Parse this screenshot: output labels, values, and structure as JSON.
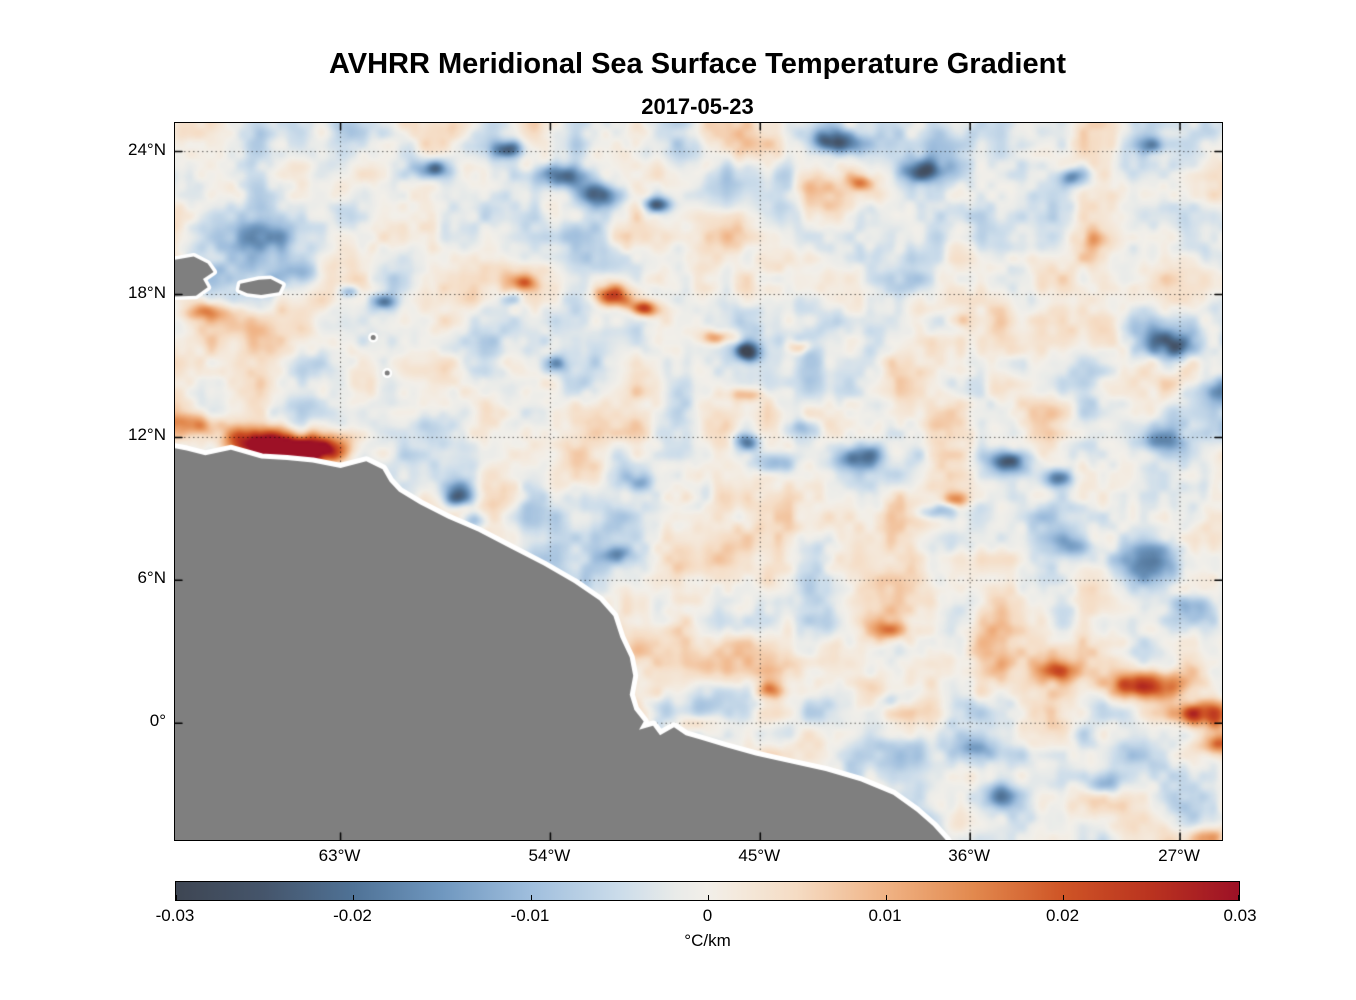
{
  "figure": {
    "title": "AVHRR Meridional Sea Surface Temperature Gradient",
    "subtitle": "2017-05-23"
  },
  "axes": {
    "lat_ticks": [
      {
        "label": "24°N",
        "value": 24
      },
      {
        "label": "18°N",
        "value": 18
      },
      {
        "label": "12°N",
        "value": 12
      },
      {
        "label": "6°N",
        "value": 6
      },
      {
        "label": "0°",
        "value": 0
      }
    ],
    "lon_ticks": [
      {
        "label": "63°W",
        "value": -63
      },
      {
        "label": "54°W",
        "value": -54
      },
      {
        "label": "45°W",
        "value": -45
      },
      {
        "label": "36°W",
        "value": -36
      },
      {
        "label": "27°W",
        "value": -27
      }
    ],
    "lon_range": [
      -70.1,
      -25.2
    ],
    "lat_range": [
      -4.9,
      25.2
    ],
    "grid": "dotted"
  },
  "colorbar": {
    "ticks": [
      "-0.03",
      "-0.02",
      "-0.01",
      "0",
      "0.01",
      "0.02",
      "0.03"
    ],
    "tick_values": [
      -0.03,
      -0.02,
      -0.01,
      0,
      0.01,
      0.02,
      0.03
    ],
    "min": -0.03,
    "max": 0.03,
    "label": "°C/km",
    "stops": [
      {
        "t": 0.0,
        "color": "#3e4653"
      },
      {
        "t": 0.083,
        "color": "#45556b"
      },
      {
        "t": 0.167,
        "color": "#4f7296"
      },
      {
        "t": 0.25,
        "color": "#6f97bf"
      },
      {
        "t": 0.333,
        "color": "#9fbedd"
      },
      {
        "t": 0.417,
        "color": "#cbdcea"
      },
      {
        "t": 0.47,
        "color": "#e9ebe9"
      },
      {
        "t": 0.5,
        "color": "#f2efe9"
      },
      {
        "t": 0.53,
        "color": "#f4e9dc"
      },
      {
        "t": 0.583,
        "color": "#f5dcc4"
      },
      {
        "t": 0.667,
        "color": "#f0b385"
      },
      {
        "t": 0.75,
        "color": "#e2894e"
      },
      {
        "t": 0.833,
        "color": "#cf5526"
      },
      {
        "t": 0.917,
        "color": "#ba331f"
      },
      {
        "t": 1.0,
        "color": "#9d1126"
      }
    ]
  },
  "chart_data": {
    "type": "heatmap",
    "variable": "Meridional Sea Surface Temperature Gradient",
    "units": "°C/km",
    "date": "2017-05-23",
    "value_range": [
      -0.03,
      0.03
    ],
    "background": "near-zero mottled field, typical ±0.006",
    "feature_fields": [
      "lon",
      "lat",
      "rx_deg",
      "ry_deg",
      "amplitude"
    ],
    "features": [
      [
        -64.9,
        11.5,
        2.2,
        0.65,
        0.042
      ],
      [
        -66.8,
        12.0,
        1.2,
        0.5,
        0.018
      ],
      [
        -69.3,
        12.6,
        1.0,
        0.45,
        0.016
      ],
      [
        -68.8,
        17.3,
        1.0,
        0.35,
        0.014
      ],
      [
        -51.2,
        17.95,
        0.9,
        0.5,
        0.027
      ],
      [
        -49.9,
        17.4,
        0.6,
        0.35,
        0.022
      ],
      [
        -46.8,
        16.2,
        0.85,
        0.32,
        0.018
      ],
      [
        -55.1,
        18.5,
        0.5,
        0.3,
        0.012
      ],
      [
        -43.3,
        15.8,
        0.6,
        0.3,
        0.01
      ],
      [
        -45.6,
        13.8,
        0.75,
        0.3,
        0.012
      ],
      [
        -36.2,
        16.9,
        0.55,
        0.3,
        0.012
      ],
      [
        -40.7,
        22.7,
        0.5,
        0.3,
        0.012
      ],
      [
        -36.6,
        9.4,
        0.5,
        0.3,
        0.014
      ],
      [
        -28.5,
        1.6,
        1.7,
        0.6,
        0.026
      ],
      [
        -26.0,
        0.4,
        1.3,
        0.55,
        0.028
      ],
      [
        -32.1,
        2.2,
        0.8,
        0.4,
        0.016
      ],
      [
        -25.2,
        -0.9,
        1.0,
        0.5,
        0.018
      ],
      [
        -44.5,
        1.35,
        0.6,
        0.35,
        0.016
      ],
      [
        -39.4,
        3.9,
        0.9,
        0.4,
        0.01
      ],
      [
        -25.8,
        -4.8,
        0.9,
        0.5,
        0.016
      ],
      [
        -30.6,
        20.3,
        1.0,
        0.5,
        0.008
      ],
      [
        -47.5,
        0.0,
        1.2,
        0.4,
        0.01
      ],
      [
        -35.0,
        2.5,
        6.0,
        2.2,
        0.005
      ],
      [
        -53.6,
        23.0,
        1.1,
        0.5,
        -0.024
      ],
      [
        -51.9,
        22.2,
        0.9,
        0.5,
        -0.026
      ],
      [
        -59.1,
        23.3,
        0.8,
        0.4,
        -0.02
      ],
      [
        -55.8,
        24.1,
        0.6,
        0.35,
        -0.018
      ],
      [
        -49.5,
        21.8,
        0.6,
        0.35,
        -0.02
      ],
      [
        -41.7,
        24.4,
        1.0,
        0.45,
        -0.026
      ],
      [
        -38.0,
        23.2,
        0.9,
        0.5,
        -0.024
      ],
      [
        -31.5,
        22.9,
        0.7,
        0.4,
        -0.016
      ],
      [
        -28.3,
        24.3,
        0.6,
        0.35,
        -0.014
      ],
      [
        -27.6,
        15.9,
        1.3,
        0.7,
        -0.02
      ],
      [
        -25.2,
        14.0,
        1.0,
        0.6,
        -0.018
      ],
      [
        -27.9,
        11.9,
        0.9,
        0.5,
        -0.014
      ],
      [
        -45.5,
        15.6,
        0.55,
        0.38,
        -0.026
      ],
      [
        -40.7,
        11.2,
        0.9,
        0.45,
        -0.02
      ],
      [
        -45.6,
        11.8,
        0.6,
        0.4,
        -0.018
      ],
      [
        -34.3,
        11.0,
        1.0,
        0.5,
        -0.022
      ],
      [
        -32.2,
        10.3,
        0.7,
        0.4,
        -0.02
      ],
      [
        -37.5,
        8.9,
        0.9,
        0.35,
        -0.014
      ],
      [
        -57.9,
        9.6,
        0.7,
        0.5,
        -0.028
      ],
      [
        -57.3,
        8.5,
        0.5,
        0.4,
        -0.02
      ],
      [
        -51.1,
        7.05,
        0.6,
        0.35,
        -0.014
      ],
      [
        -28.2,
        6.7,
        1.4,
        0.8,
        -0.016
      ],
      [
        -26.5,
        4.8,
        1.0,
        0.6,
        -0.014
      ],
      [
        -31.6,
        7.5,
        0.8,
        0.5,
        -0.012
      ],
      [
        -42.0,
        -2.85,
        0.9,
        0.4,
        -0.012
      ],
      [
        -34.5,
        -3.05,
        0.9,
        0.5,
        -0.014
      ],
      [
        -30.2,
        -2.55,
        0.9,
        0.5,
        -0.012
      ],
      [
        -66.6,
        20.4,
        0.9,
        0.5,
        -0.012
      ],
      [
        -64.7,
        19.0,
        0.8,
        0.5,
        -0.01
      ],
      [
        -61.1,
        17.7,
        0.5,
        0.3,
        -0.012
      ],
      [
        -62.6,
        18.1,
        0.4,
        0.25,
        -0.01
      ],
      [
        -43.3,
        12.3,
        0.8,
        0.45,
        -0.014
      ],
      [
        -44.5,
        10.9,
        0.9,
        0.4,
        -0.012
      ],
      [
        -55.7,
        17.8,
        0.5,
        0.3,
        -0.012
      ],
      [
        -53.8,
        15.1,
        0.6,
        0.35,
        -0.01
      ],
      [
        -50.1,
        10.2,
        0.6,
        0.4,
        -0.01
      ],
      [
        -39.2,
        1.0,
        0.8,
        0.4,
        -0.008
      ],
      [
        -35.8,
        -1.0,
        1.2,
        0.5,
        -0.01
      ],
      [
        -66.0,
        20.0,
        3.5,
        2.5,
        -0.004
      ]
    ],
    "land": {
      "color": "#7f7f7f",
      "buffer_color": "#ffffff",
      "coast": [
        [
          -70.3,
          11.58
        ],
        [
          -69.6,
          11.45
        ],
        [
          -68.8,
          11.25
        ],
        [
          -67.7,
          11.48
        ],
        [
          -66.4,
          11.12
        ],
        [
          -65.3,
          11.05
        ],
        [
          -64.2,
          10.95
        ],
        [
          -63.0,
          10.72
        ],
        [
          -61.9,
          11.0
        ],
        [
          -61.2,
          10.66
        ],
        [
          -60.9,
          10.15
        ],
        [
          -60.5,
          9.73
        ],
        [
          -59.6,
          9.2
        ],
        [
          -58.4,
          8.6
        ],
        [
          -57.1,
          8.05
        ],
        [
          -55.7,
          7.34
        ],
        [
          -54.3,
          6.63
        ],
        [
          -53.0,
          5.9
        ],
        [
          -51.9,
          5.16
        ],
        [
          -51.3,
          4.5
        ],
        [
          -51.0,
          3.6
        ],
        [
          -50.6,
          2.77
        ],
        [
          -50.45,
          2.0
        ],
        [
          -50.6,
          1.2
        ],
        [
          -50.4,
          0.57
        ],
        [
          -50.0,
          0.07
        ],
        [
          -50.2,
          -0.27
        ],
        [
          -49.6,
          -0.1
        ],
        [
          -49.3,
          -0.5
        ],
        [
          -48.7,
          -0.17
        ],
        [
          -48.2,
          -0.5
        ],
        [
          -47.6,
          -0.67
        ],
        [
          -46.5,
          -1.0
        ],
        [
          -45.2,
          -1.35
        ],
        [
          -43.7,
          -1.68
        ],
        [
          -42.2,
          -2.0
        ],
        [
          -40.7,
          -2.43
        ],
        [
          -39.3,
          -3.0
        ],
        [
          -38.3,
          -3.7
        ],
        [
          -37.6,
          -4.3
        ],
        [
          -37.0,
          -4.95
        ],
        [
          -36.8,
          -5.4
        ]
      ],
      "islands": [
        [
          [
            -70.4,
            19.4
          ],
          [
            -69.3,
            19.6
          ],
          [
            -68.7,
            19.3
          ],
          [
            -68.45,
            18.95
          ],
          [
            -68.9,
            18.65
          ],
          [
            -68.7,
            18.3
          ],
          [
            -69.2,
            17.95
          ],
          [
            -70.4,
            17.9
          ]
        ],
        [
          [
            -67.3,
            18.45
          ],
          [
            -66.5,
            18.62
          ],
          [
            -66.0,
            18.65
          ],
          [
            -65.5,
            18.4
          ],
          [
            -65.65,
            18.1
          ],
          [
            -66.4,
            17.98
          ],
          [
            -67.0,
            18.05
          ],
          [
            -67.35,
            18.2
          ]
        ]
      ],
      "islets": [
        [
          -61.6,
          16.2
        ],
        [
          -61.0,
          14.7
        ]
      ]
    }
  }
}
